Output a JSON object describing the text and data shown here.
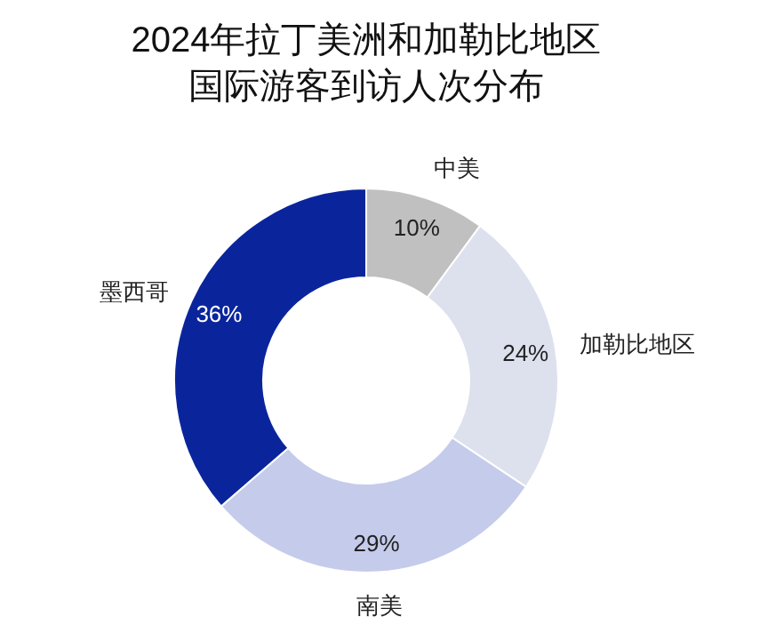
{
  "chart_data": {
    "type": "donut",
    "title": "2024年拉丁美洲和加勒比地区国际游客到访人次分布",
    "categories": [
      "中美",
      "加勒比地区",
      "南美",
      "墨西哥"
    ],
    "values": [
      10,
      24,
      29,
      36
    ],
    "colors": [
      "#c0c0c0",
      "#dde1ee",
      "#c5cbeb",
      "#0a259c"
    ],
    "value_labels": [
      "10%",
      "24%",
      "29%",
      "36%"
    ]
  }
}
